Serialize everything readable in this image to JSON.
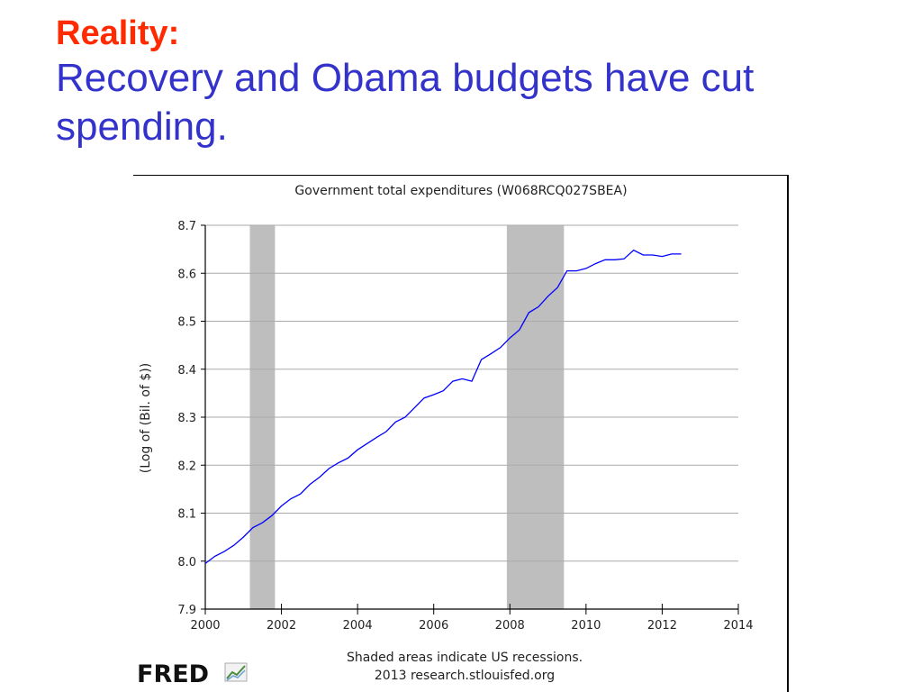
{
  "slide": {
    "heading_label": "Reality:",
    "heading_text": "Recovery and Obama budgets have cut spending."
  },
  "chart_data": {
    "type": "line",
    "title": "Government total expenditures (W068RCQ027SBEA)",
    "xlabel": "",
    "ylabel": "(Log of (Bil. of $))",
    "xlim": [
      2000,
      2014
    ],
    "ylim": [
      7.9,
      8.7
    ],
    "x_ticks": [
      "2000",
      "2002",
      "2004",
      "2006",
      "2008",
      "2010",
      "2012",
      "2014"
    ],
    "y_ticks": [
      "7.9",
      "8.0",
      "8.1",
      "8.2",
      "8.3",
      "8.4",
      "8.5",
      "8.6",
      "8.7"
    ],
    "grid": true,
    "recessions": [
      [
        2001.17,
        2001.83
      ],
      [
        2007.92,
        2009.42
      ]
    ],
    "series": [
      {
        "color": "#0000ff",
        "x": [
          2000.0,
          2000.25,
          2000.5,
          2000.75,
          2001.0,
          2001.25,
          2001.5,
          2001.75,
          2002.0,
          2002.25,
          2002.5,
          2002.75,
          2003.0,
          2003.25,
          2003.5,
          2003.75,
          2004.0,
          2004.25,
          2004.5,
          2004.75,
          2005.0,
          2005.25,
          2005.5,
          2005.75,
          2006.0,
          2006.25,
          2006.5,
          2006.75,
          2007.0,
          2007.25,
          2007.5,
          2007.75,
          2008.0,
          2008.25,
          2008.5,
          2008.75,
          2009.0,
          2009.25,
          2009.5,
          2009.75,
          2010.0,
          2010.25,
          2010.5,
          2010.75,
          2011.0,
          2011.25,
          2011.5,
          2011.75,
          2012.0,
          2012.25,
          2012.5
        ],
        "y": [
          7.995,
          8.01,
          8.02,
          8.033,
          8.05,
          8.07,
          8.08,
          8.095,
          8.115,
          8.13,
          8.14,
          8.16,
          8.175,
          8.193,
          8.205,
          8.215,
          8.232,
          8.245,
          8.258,
          8.27,
          8.29,
          8.3,
          8.32,
          8.34,
          8.347,
          8.355,
          8.375,
          8.38,
          8.375,
          8.42,
          8.432,
          8.445,
          8.465,
          8.482,
          8.518,
          8.53,
          8.552,
          8.57,
          8.605,
          8.605,
          8.61,
          8.62,
          8.628,
          8.628,
          8.63,
          8.648,
          8.638,
          8.638,
          8.635,
          8.64,
          8.64
        ]
      }
    ],
    "footnote_line1": "Shaded areas indicate US recessions.",
    "footnote_line2": "2013 research.stlouisfed.org",
    "logo_text": "FRED"
  }
}
